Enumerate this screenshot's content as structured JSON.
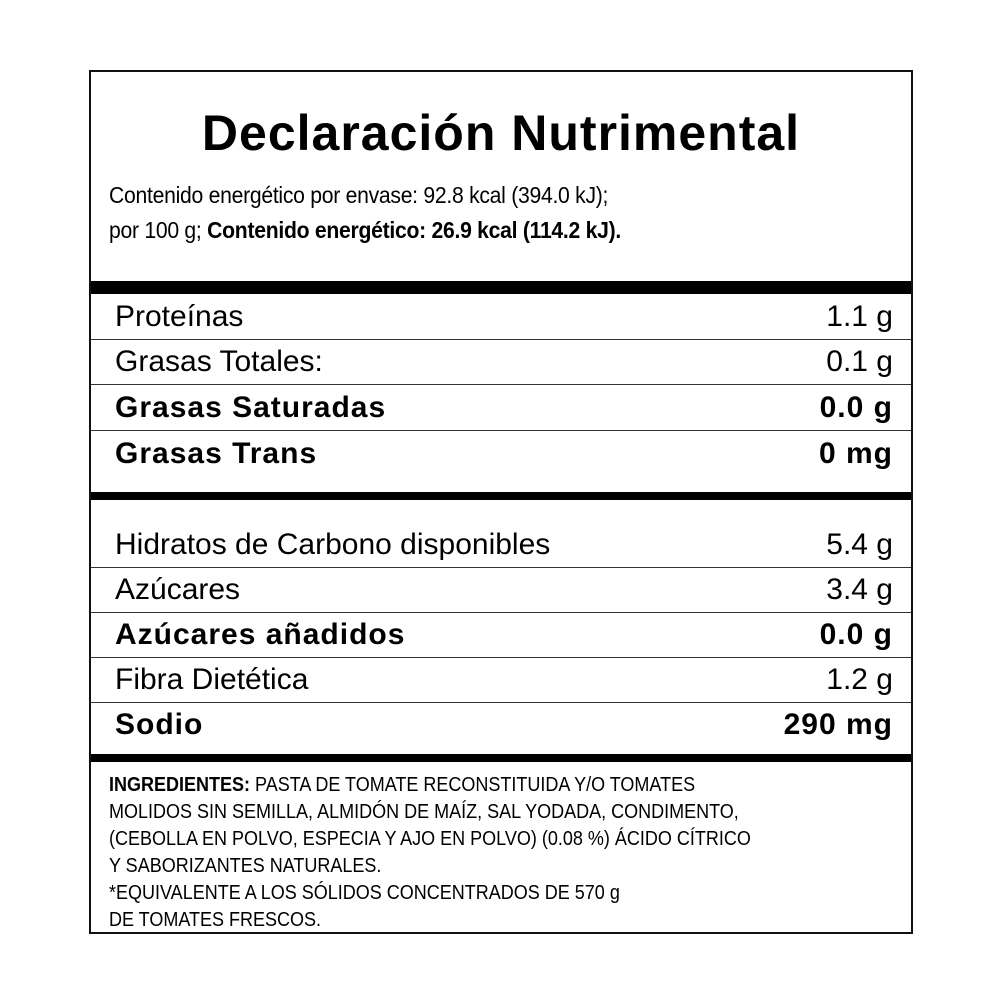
{
  "title": "Declaración Nutrimental",
  "energy": {
    "line1": "Contenido energético por envase: 92.8 kcal (394.0 kJ);",
    "line2_prefix": "por 100 g; ",
    "line2_bold": "Contenido energético: 26.9 kcal (114.2 kJ)."
  },
  "group1": [
    {
      "label": "Proteínas",
      "value": "1.1 g",
      "bold": false
    },
    {
      "label": "Grasas Totales:",
      "value": "0.1 g",
      "bold": false
    },
    {
      "label": "Grasas Saturadas",
      "value": "0.0 g",
      "bold": true
    },
    {
      "label": "Grasas Trans",
      "value": "0 mg",
      "bold": true
    }
  ],
  "group2": [
    {
      "label": "Hidratos de Carbono disponibles",
      "value": "5.4 g",
      "bold": false
    },
    {
      "label": "Azúcares",
      "value": "3.4 g",
      "bold": false
    },
    {
      "label": "Azúcares añadidos",
      "value": "0.0 g",
      "bold": true
    },
    {
      "label": "Fibra Dietética",
      "value": "1.2 g",
      "bold": false
    },
    {
      "label": "Sodio",
      "value": "290 mg",
      "bold": true
    }
  ],
  "ingredients": {
    "heading": "INGREDIENTES:",
    "line1": " PASTA DE TOMATE RECONSTITUIDA Y/O TOMATES",
    "line2": "MOLIDOS SIN SEMILLA, ALMIDÓN DE MAÍZ, SAL YODADA, CONDIMENTO,",
    "line3": "(CEBOLLA EN POLVO, ESPECIA Y AJO EN POLVO) (0.08 %) ÁCIDO CÍTRICO",
    "line4": "Y SABORIZANTES NATURALES.",
    "line5": "*EQUIVALENTE A LOS SÓLIDOS CONCENTRADOS DE 570 g",
    "line6": "DE TOMATES FRESCOS."
  }
}
